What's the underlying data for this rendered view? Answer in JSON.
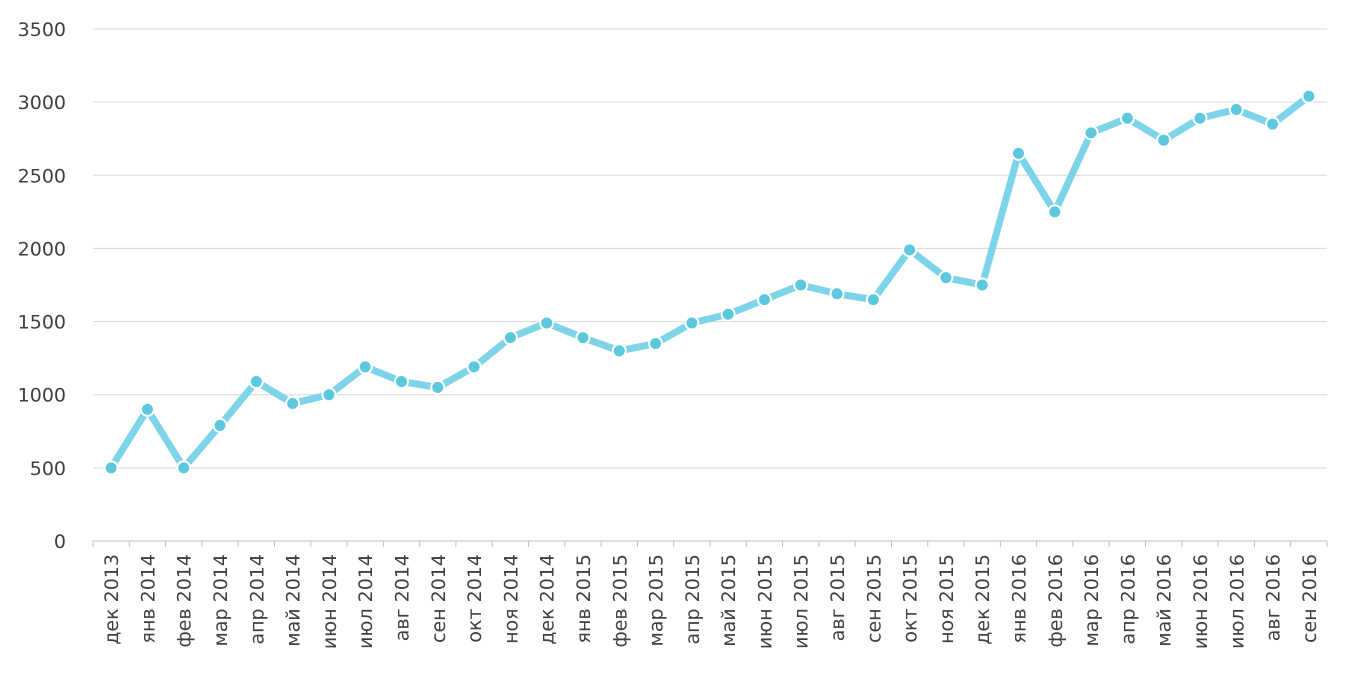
{
  "chart_data": {
    "type": "line",
    "title": "",
    "xlabel": "",
    "ylabel": "",
    "ylim": [
      0,
      3500
    ],
    "yticks": [
      "0",
      "500",
      "1000",
      "1500",
      "2000",
      "2500",
      "3000",
      "3500"
    ],
    "grid": true,
    "categories": [
      "дек 2013",
      "янв 2014",
      "фев 2014",
      "мар 2014",
      "апр 2014",
      "май 2014",
      "июн 2014",
      "июл 2014",
      "авг 2014",
      "сен 2014",
      "окт 2014",
      "ноя 2014",
      "дек 2014",
      "янв 2015",
      "фев 2015",
      "мар 2015",
      "апр 2015",
      "май 2015",
      "июн 2015",
      "июл 2015",
      "авг 2015",
      "сен 2015",
      "окт 2015",
      "ноя 2015",
      "дек 2015",
      "янв 2016",
      "фев 2016",
      "мар 2016",
      "апр 2016",
      "май 2016",
      "июн 2016",
      "июл 2016",
      "авг 2016",
      "сен 2016"
    ],
    "series": [
      {
        "color": "#7dd3e8",
        "marker_color": "#5bc8de",
        "values": [
          500,
          900,
          500,
          790,
          1090,
          940,
          1000,
          1190,
          1090,
          1050,
          1190,
          1390,
          1490,
          1390,
          1300,
          1350,
          1490,
          1550,
          1650,
          1750,
          1690,
          1650,
          1990,
          1800,
          1750,
          2650,
          2250,
          2790,
          2890,
          2740,
          2890,
          2950,
          2850,
          3040
        ]
      }
    ]
  }
}
